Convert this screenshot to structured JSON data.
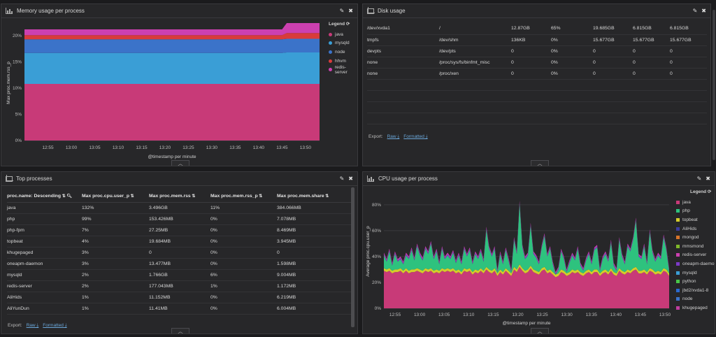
{
  "memory_panel": {
    "title": "Memory usage per process",
    "legend_title": "Legend",
    "y_label": "Max proc.mem.rss_p",
    "x_label": "@timestamp per minute",
    "chart_data": {
      "type": "area",
      "stacked": true,
      "x": [
        "12:50",
        "12:55",
        "13:00",
        "13:05",
        "13:10",
        "13:15",
        "13:20",
        "13:25",
        "13:30",
        "13:35",
        "13:40",
        "13:45",
        "13:46",
        "13:47",
        "13:50",
        "13:53"
      ],
      "x_ticks": [
        "12:55",
        "13:00",
        "13:05",
        "13:10",
        "13:15",
        "13:20",
        "13:25",
        "13:30",
        "13:35",
        "13:40",
        "13:45",
        "13:50"
      ],
      "y_ticks": [
        "0%",
        "5%",
        "10%",
        "15%",
        "20%"
      ],
      "ylim": [
        0,
        22
      ],
      "grid": true,
      "series": [
        {
          "name": "java",
          "color": "#c83a78",
          "values": [
            10.8,
            10.8,
            10.8,
            10.8,
            10.8,
            10.8,
            10.8,
            10.8,
            10.8,
            10.8,
            10.8,
            10.8,
            10.8,
            10.8,
            10.8,
            10.8
          ]
        },
        {
          "name": "mysqld",
          "color": "#3a9ed6",
          "values": [
            5.9,
            5.9,
            5.9,
            5.9,
            5.9,
            5.9,
            5.9,
            5.9,
            5.9,
            5.9,
            5.9,
            5.9,
            6.0,
            6.0,
            6.0,
            6.0
          ]
        },
        {
          "name": "node",
          "color": "#3b73c9",
          "values": [
            2.6,
            2.6,
            2.6,
            2.6,
            2.6,
            2.6,
            2.6,
            2.6,
            2.6,
            2.6,
            2.6,
            2.6,
            2.6,
            2.6,
            2.6,
            2.6
          ]
        },
        {
          "name": "hhvm",
          "color": "#d83b3b",
          "values": [
            0.8,
            0.8,
            0.8,
            0.8,
            0.8,
            0.8,
            0.8,
            0.8,
            0.8,
            0.8,
            0.8,
            0.8,
            1.1,
            1.1,
            1.1,
            1.1
          ]
        },
        {
          "name": "redis-server",
          "color": "#cc40b0",
          "values": [
            1.1,
            1.1,
            1.1,
            1.1,
            1.1,
            1.1,
            1.1,
            1.1,
            1.1,
            1.1,
            1.1,
            1.1,
            1.9,
            1.9,
            1.9,
            1.9
          ]
        }
      ]
    }
  },
  "disk_panel": {
    "title": "Disk usage",
    "rows": [
      [
        "/dev/xvda1",
        "/",
        "12.87GB",
        "65%",
        "19.685GB",
        "6.815GB",
        "6.815GB"
      ],
      [
        "tmpfs",
        "/dev/shm",
        "136KB",
        "0%",
        "15.677GB",
        "15.677GB",
        "15.677GB"
      ],
      [
        "devpts",
        "/dev/pts",
        "0",
        "0%",
        "0",
        "0",
        "0"
      ],
      [
        "none",
        "/proc/sys/fs/binfmt_misc",
        "0",
        "0%",
        "0",
        "0",
        "0"
      ],
      [
        "none",
        "/proc/xen",
        "0",
        "0%",
        "0",
        "0",
        "0"
      ]
    ],
    "export_label": "Export:",
    "raw_label": "Raw ⤓",
    "formatted_label": "Formatted ⤓"
  },
  "top_panel": {
    "title": "Top processes",
    "headers": [
      "proc.name: Descending",
      "Max proc.cpu.user_p",
      "Max proc.mem.rss",
      "Max proc.mem.rss_p",
      "Max proc.mem.share"
    ],
    "rows": [
      [
        "java",
        "132%",
        "3.496GB",
        "11%",
        "384.066MB"
      ],
      [
        "php",
        "99%",
        "153.426MB",
        "0%",
        "7.078MB"
      ],
      [
        "php-fpm",
        "7%",
        "27.25MB",
        "0%",
        "8.469MB"
      ],
      [
        "topbeat",
        "4%",
        "19.684MB",
        "0%",
        "3.945MB"
      ],
      [
        "khugepaged",
        "3%",
        "0",
        "0%",
        "0"
      ],
      [
        "oneapm-daemon",
        "3%",
        "13.477MB",
        "0%",
        "1.598MB"
      ],
      [
        "mysqld",
        "2%",
        "1.766GB",
        "6%",
        "9.004MB"
      ],
      [
        "redis-server",
        "2%",
        "177.043MB",
        "1%",
        "1.172MB"
      ],
      [
        "AliHids",
        "1%",
        "11.152MB",
        "0%",
        "6.219MB"
      ],
      [
        "AliYunDun",
        "1%",
        "11.41MB",
        "0%",
        "6.004MB"
      ]
    ],
    "export_label": "Export:",
    "raw_label": "Raw ⤓",
    "formatted_label": "Formatted ⤓"
  },
  "cpu_panel": {
    "title": "CPU usage per process",
    "legend_title": "Legend",
    "y_label": "Average proc.cpu.user_p",
    "x_label": "@timestamp per minute",
    "legend": [
      {
        "name": "java",
        "color": "#c83a78"
      },
      {
        "name": "php",
        "color": "#2ec27e"
      },
      {
        "name": "topbeat",
        "color": "#d4cc2a"
      },
      {
        "name": "AliHids",
        "color": "#3a3aa0"
      },
      {
        "name": "mongod",
        "color": "#d8742a"
      },
      {
        "name": "mmsmond",
        "color": "#7fb82a"
      },
      {
        "name": "redis-server",
        "color": "#cc40b0"
      },
      {
        "name": "oneapm-daemo",
        "color": "#7c3ac8"
      },
      {
        "name": "mysqld",
        "color": "#3a9ed6"
      },
      {
        "name": "python",
        "color": "#48c848"
      },
      {
        "name": "jbd2/xvda1-8",
        "color": "#2a6ad0"
      },
      {
        "name": "node",
        "color": "#3b73c9"
      },
      {
        "name": "khugepaged",
        "color": "#c03ea0"
      }
    ],
    "chart_data": {
      "type": "area",
      "stacked": true,
      "x_ticks": [
        "12:55",
        "13:00",
        "13:05",
        "13:10",
        "13:15",
        "13:20",
        "13:25",
        "13:30",
        "13:35",
        "13:40",
        "13:45",
        "13:50"
      ],
      "y_ticks": [
        "0%",
        "20%",
        "40%",
        "60%",
        "80%"
      ],
      "ylim": [
        0,
        88
      ],
      "grid": true,
      "total": [
        43,
        38,
        46,
        35,
        44,
        38,
        40,
        36,
        43,
        40,
        47,
        39,
        50,
        43,
        39,
        48,
        44,
        52,
        40,
        46,
        36,
        48,
        40,
        43,
        40,
        45,
        37,
        43,
        36,
        48,
        42,
        47,
        36,
        44,
        40,
        46,
        38,
        63,
        48,
        42,
        48,
        30,
        44,
        36,
        47,
        39,
        30,
        55,
        44,
        83,
        49,
        40,
        43,
        66,
        44,
        41,
        36,
        49,
        58,
        42,
        48,
        36,
        28,
        32,
        46,
        40,
        30,
        37,
        43,
        39,
        48,
        35,
        31,
        39,
        44,
        36,
        47,
        49,
        31,
        40,
        44,
        38,
        53,
        35,
        31,
        55,
        42,
        36,
        50,
        46,
        55,
        70,
        42,
        40,
        50,
        36,
        61,
        45,
        38,
        43,
        40,
        57,
        47,
        31
      ],
      "java": [
        29,
        28,
        29,
        27,
        28,
        28,
        29,
        27,
        29,
        27,
        28,
        28,
        29,
        28,
        27,
        29,
        28,
        29,
        27,
        28,
        27,
        29,
        28,
        29,
        28,
        29,
        27,
        28,
        26,
        29,
        28,
        29,
        26,
        28,
        27,
        29,
        27,
        30,
        28,
        27,
        29,
        25,
        28,
        26,
        29,
        27,
        25,
        30,
        28,
        32,
        29,
        27,
        28,
        31,
        28,
        27,
        26,
        29,
        30,
        27,
        28,
        26,
        24,
        25,
        28,
        27,
        25,
        26,
        28,
        27,
        28,
        26,
        25,
        27,
        28,
        26,
        28,
        28,
        25,
        27,
        28,
        26,
        29,
        26,
        25,
        29,
        27,
        26,
        28,
        27,
        29,
        30,
        27,
        27,
        28,
        26,
        29,
        28,
        26,
        27,
        26,
        29,
        28,
        25
      ],
      "topbeat": [
        2,
        2,
        2,
        2,
        2,
        2,
        2,
        2,
        2,
        2,
        2,
        2,
        2,
        2,
        2,
        2,
        2,
        2,
        2,
        2,
        2,
        2,
        2,
        2,
        2,
        2,
        2,
        2,
        2,
        2,
        2,
        2,
        2,
        2,
        2,
        2,
        2,
        2,
        2,
        2,
        2,
        2,
        2,
        2,
        2,
        2,
        2,
        2,
        2,
        2,
        2,
        2,
        2,
        2,
        2,
        2,
        2,
        2,
        2,
        2,
        2,
        2,
        2,
        2,
        2,
        2,
        2,
        2,
        2,
        2,
        2,
        2,
        2,
        2,
        2,
        2,
        2,
        2,
        2,
        2,
        2,
        2,
        2,
        2,
        2,
        2,
        2,
        2,
        2,
        2,
        2,
        2,
        2,
        2,
        2,
        2,
        2,
        2,
        2,
        2,
        2,
        2,
        2,
        2
      ]
    }
  }
}
